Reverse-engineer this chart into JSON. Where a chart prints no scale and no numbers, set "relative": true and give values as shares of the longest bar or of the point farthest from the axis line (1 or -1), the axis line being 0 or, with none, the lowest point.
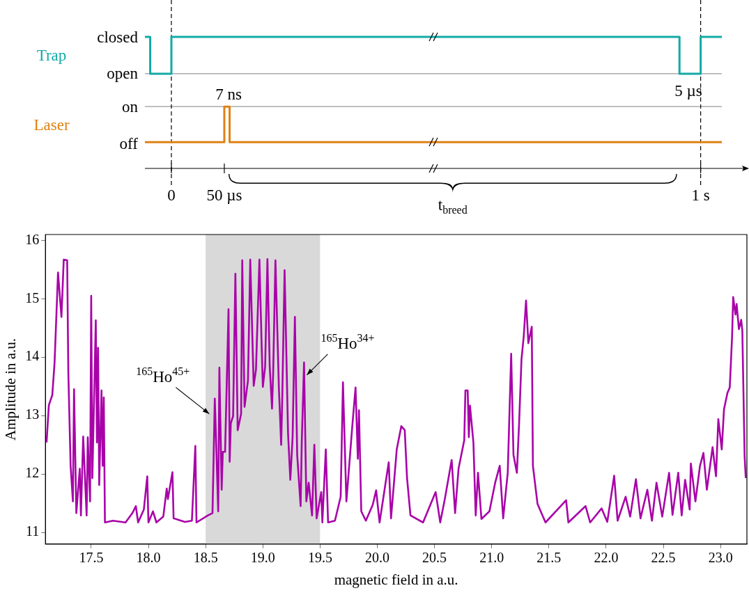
{
  "chart_data": [
    {
      "type": "step",
      "relative": true,
      "categories": [
        null,
        null,
        null,
        null,
        null,
        "0",
        null,
        null,
        null,
        null,
        null,
        null,
        null,
        null,
        null,
        "50 µs",
        null,
        null,
        null,
        null,
        null,
        null,
        null,
        null,
        null,
        null,
        null,
        null,
        null,
        null,
        null,
        null,
        null,
        null,
        null,
        null,
        null,
        null,
        null,
        null,
        null,
        null,
        null,
        null,
        null,
        null,
        null,
        null,
        null,
        null,
        null,
        null,
        null,
        null,
        null,
        null,
        null,
        null,
        null,
        null,
        null,
        null,
        null,
        null,
        null,
        null,
        null,
        null,
        null,
        null,
        null,
        null,
        null,
        null,
        null,
        null,
        null,
        null,
        null,
        null,
        null,
        null,
        null,
        null,
        null,
        null,
        null,
        null,
        null,
        null,
        null,
        null,
        null,
        null,
        null,
        null,
        null,
        null,
        null,
        null,
        null,
        null,
        null,
        null,
        null,
        "1 s",
        null,
        null,
        null,
        null
      ],
      "grid": false,
      "legend": false,
      "marker": "none",
      "ref_lines": [
        {
          "axis": "y",
          "value": 0.72,
          "color": "#999999"
        },
        {
          "axis": "y",
          "value": 0.47,
          "color": "#999999"
        },
        {
          "axis": "x",
          "value": "0",
          "color": "#000000",
          "line_style": "dashed"
        },
        {
          "axis": "x",
          "value": "1 s",
          "color": "#000000",
          "line_style": "dashed"
        }
      ],
      "annotations": [
        "closed",
        "open",
        "on",
        "off",
        "7 ns",
        "5 µs",
        "t$_{breed}$"
      ],
      "series": [
        {
          "name": "Trap",
          "color": "#12aaa6",
          "values": [
            1,
            0.72,
            0.72,
            0.72,
            0.72,
            1,
            1,
            1,
            1,
            1,
            1,
            1,
            1,
            1,
            1,
            1,
            1,
            1,
            1,
            1,
            1,
            1,
            1,
            1,
            1,
            1,
            1,
            1,
            1,
            1,
            1,
            1,
            1,
            1,
            1,
            1,
            1,
            1,
            1,
            1,
            1,
            1,
            1,
            1,
            1,
            1,
            1,
            1,
            1,
            1,
            1,
            1,
            1,
            1,
            1,
            1,
            1,
            1,
            1,
            1,
            1,
            1,
            1,
            1,
            1,
            1,
            1,
            1,
            1,
            1,
            1,
            1,
            1,
            1,
            1,
            1,
            1,
            1,
            1,
            1,
            1,
            1,
            1,
            1,
            1,
            1,
            1,
            1,
            1,
            1,
            1,
            1,
            1,
            1,
            1,
            1,
            1,
            1,
            1,
            1,
            1,
            0.72,
            0.72,
            0.72,
            0.72,
            1,
            1,
            1,
            1,
            1
          ]
        },
        {
          "name": "Laser",
          "color": "#e08214",
          "values": [
            0.2,
            0.2,
            0.2,
            0.2,
            0.2,
            0.2,
            0.2,
            0.2,
            0.2,
            0.2,
            0.2,
            0.2,
            0.2,
            0.2,
            0.2,
            0.47,
            0.2,
            0.2,
            0.2,
            0.2,
            0.2,
            0.2,
            0.2,
            0.2,
            0.2,
            0.2,
            0.2,
            0.2,
            0.2,
            0.2,
            0.2,
            0.2,
            0.2,
            0.2,
            0.2,
            0.2,
            0.2,
            0.2,
            0.2,
            0.2,
            0.2,
            0.2,
            0.2,
            0.2,
            0.2,
            0.2,
            0.2,
            0.2,
            0.2,
            0.2,
            0.2,
            0.2,
            0.2,
            0.2,
            0.2,
            0.2,
            0.2,
            0.2,
            0.2,
            0.2,
            0.2,
            0.2,
            0.2,
            0.2,
            0.2,
            0.2,
            0.2,
            0.2,
            0.2,
            0.2,
            0.2,
            0.2,
            0.2,
            0.2,
            0.2,
            0.2,
            0.2,
            0.2,
            0.2,
            0.2,
            0.2,
            0.2,
            0.2,
            0.2,
            0.2,
            0.2,
            0.2,
            0.2,
            0.2,
            0.2,
            0.2,
            0.2,
            0.2,
            0.2,
            0.2,
            0.2,
            0.2,
            0.2,
            0.2,
            0.2,
            0.2,
            0.2,
            0.2,
            0.2,
            0.2,
            0.2,
            0.2,
            0.2,
            0.2,
            0.2
          ]
        }
      ]
    },
    {
      "type": "line",
      "xlabel": "magnetic field in a.u.",
      "ylabel": "Amplitude in a.u.",
      "xlim": [
        17.1,
        23.23
      ],
      "ylim": [
        10.8,
        16.1
      ],
      "xticks": [
        17.5,
        {
          "value": 18,
          "label": "18.0"
        },
        18.5,
        {
          "value": 19,
          "label": "19.0"
        },
        19.5,
        {
          "value": 20,
          "label": "20.0"
        },
        20.5,
        {
          "value": 21,
          "label": "21.0"
        },
        21.5,
        {
          "value": 22,
          "label": "22.0"
        },
        22.5,
        {
          "value": 23,
          "label": "23.0"
        }
      ],
      "yticks": [
        11,
        12,
        13,
        14,
        15,
        16
      ],
      "grid": false,
      "legend": false,
      "marker": "none",
      "line_style": "solid",
      "bands": [
        {
          "axis": "x",
          "from": 18.5,
          "to": 19.5,
          "color": "#d9d9d9"
        }
      ],
      "annotations": [
        {
          "text": "$^{165}$Ho$^{45+}$",
          "x": 18.55,
          "y": 13.03
        },
        {
          "text": "$^{165}$Ho$^{34+}$",
          "x": 19.36,
          "y": 13.91
        }
      ],
      "series": [
        {
          "color": "#a803a8",
          "x": [
            17.11,
            17.13,
            17.16,
            17.18,
            17.21,
            17.24,
            17.26,
            17.29,
            17.3,
            17.32,
            17.34,
            17.35,
            17.37,
            17.4,
            17.41,
            17.43,
            17.46,
            17.47,
            17.49,
            17.5,
            17.51,
            17.54,
            17.55,
            17.56,
            17.57,
            17.59,
            17.6,
            17.61,
            17.62,
            17.69,
            17.8,
            17.86,
            17.89,
            17.91,
            17.96,
            17.99,
            18.0,
            18.04,
            18.07,
            18.13,
            18.16,
            18.17,
            18.21,
            18.22,
            18.32,
            18.38,
            18.41,
            18.42,
            18.52,
            18.56,
            18.58,
            18.61,
            18.62,
            18.64,
            18.65,
            18.67,
            18.7,
            18.71,
            18.72,
            18.74,
            18.76,
            18.78,
            18.81,
            18.82,
            18.84,
            18.87,
            18.89,
            18.92,
            18.94,
            18.97,
            18.99,
            19.0,
            19.02,
            19.04,
            19.06,
            19.08,
            19.09,
            19.11,
            19.14,
            19.16,
            19.17,
            19.19,
            19.22,
            19.24,
            19.26,
            19.28,
            19.3,
            19.33,
            19.34,
            19.36,
            19.38,
            19.4,
            19.43,
            19.45,
            19.47,
            19.51,
            19.52,
            19.55,
            19.57,
            19.63,
            19.68,
            19.7,
            19.73,
            19.78,
            19.81,
            19.83,
            19.84,
            19.86,
            19.9,
            19.96,
            19.99,
            20.02,
            20.1,
            20.12,
            20.17,
            20.21,
            20.24,
            20.26,
            20.29,
            20.4,
            20.51,
            20.55,
            20.59,
            20.65,
            20.68,
            20.71,
            20.76,
            20.77,
            20.79,
            20.8,
            20.81,
            20.84,
            20.86,
            20.88,
            20.91,
            20.98,
            21.03,
            21.07,
            21.1,
            21.14,
            21.17,
            21.19,
            21.22,
            21.24,
            21.26,
            21.28,
            21.3,
            21.32,
            21.35,
            21.36,
            21.4,
            21.47,
            21.65,
            21.67,
            21.82,
            21.86,
            21.96,
            22.01,
            22.07,
            22.1,
            22.17,
            22.21,
            22.26,
            22.3,
            22.36,
            22.4,
            22.44,
            22.49,
            22.55,
            22.58,
            22.63,
            22.66,
            22.69,
            22.73,
            22.74,
            22.78,
            22.82,
            22.85,
            22.88,
            22.93,
            22.96,
            22.98,
            23.01,
            23.03,
            23.06,
            23.08,
            23.1,
            23.11,
            23.13,
            23.14,
            23.16,
            23.18,
            23.19,
            23.21,
            23.22
          ],
          "values": [
            12.54,
            13.18,
            13.35,
            13.91,
            15.45,
            14.69,
            15.67,
            15.66,
            13.75,
            12.14,
            11.53,
            13.45,
            11.33,
            12.09,
            11.29,
            12.64,
            11.29,
            12.63,
            11.53,
            15.05,
            11.93,
            14.63,
            12.54,
            14.16,
            11.81,
            13.43,
            12.14,
            13.31,
            11.17,
            11.2,
            11.17,
            11.33,
            11.45,
            11.17,
            11.39,
            11.96,
            11.17,
            11.36,
            11.17,
            11.27,
            11.75,
            11.57,
            12.03,
            11.24,
            11.18,
            11.2,
            12.48,
            11.17,
            11.29,
            11.33,
            13.29,
            11.36,
            13.82,
            11.73,
            12.38,
            12.38,
            14.82,
            12.21,
            12.87,
            12.99,
            15.43,
            12.75,
            13.03,
            15.66,
            13.15,
            13.6,
            15.67,
            13.51,
            13.79,
            15.67,
            14.16,
            13.49,
            13.84,
            15.68,
            13.84,
            13.12,
            13.72,
            15.66,
            13.48,
            12.5,
            13.35,
            15.49,
            12.7,
            11.9,
            12.63,
            14.69,
            12.33,
            11.45,
            12.54,
            13.91,
            11.53,
            11.85,
            11.29,
            12.5,
            11.24,
            11.69,
            11.17,
            12.42,
            11.17,
            11.2,
            11.61,
            13.57,
            11.53,
            12.78,
            13.48,
            12.26,
            13.09,
            11.36,
            11.2,
            11.47,
            11.72,
            11.17,
            12.2,
            11.24,
            12.42,
            12.82,
            12.75,
            11.93,
            11.29,
            11.17,
            11.69,
            11.17,
            11.57,
            12.24,
            11.33,
            12.09,
            12.58,
            13.43,
            13.43,
            12.63,
            13.17,
            12.54,
            11.29,
            12.02,
            11.23,
            11.36,
            11.85,
            12.14,
            11.24,
            12.02,
            14.06,
            12.33,
            12.02,
            12.9,
            13.96,
            14.36,
            14.97,
            14.24,
            14.52,
            12.14,
            11.49,
            11.17,
            11.55,
            11.17,
            11.45,
            11.17,
            11.41,
            11.18,
            11.97,
            11.2,
            11.61,
            11.27,
            11.91,
            11.24,
            11.73,
            11.2,
            11.85,
            11.27,
            12.02,
            11.3,
            12.02,
            11.29,
            11.9,
            11.39,
            12.18,
            11.53,
            12.14,
            12.36,
            11.73,
            12.46,
            11.96,
            12.94,
            12.42,
            13.11,
            13.39,
            13.48,
            14.33,
            15.03,
            14.73,
            14.91,
            14.48,
            14.64,
            14.45,
            12.3,
            11.93
          ]
        }
      ]
    }
  ]
}
